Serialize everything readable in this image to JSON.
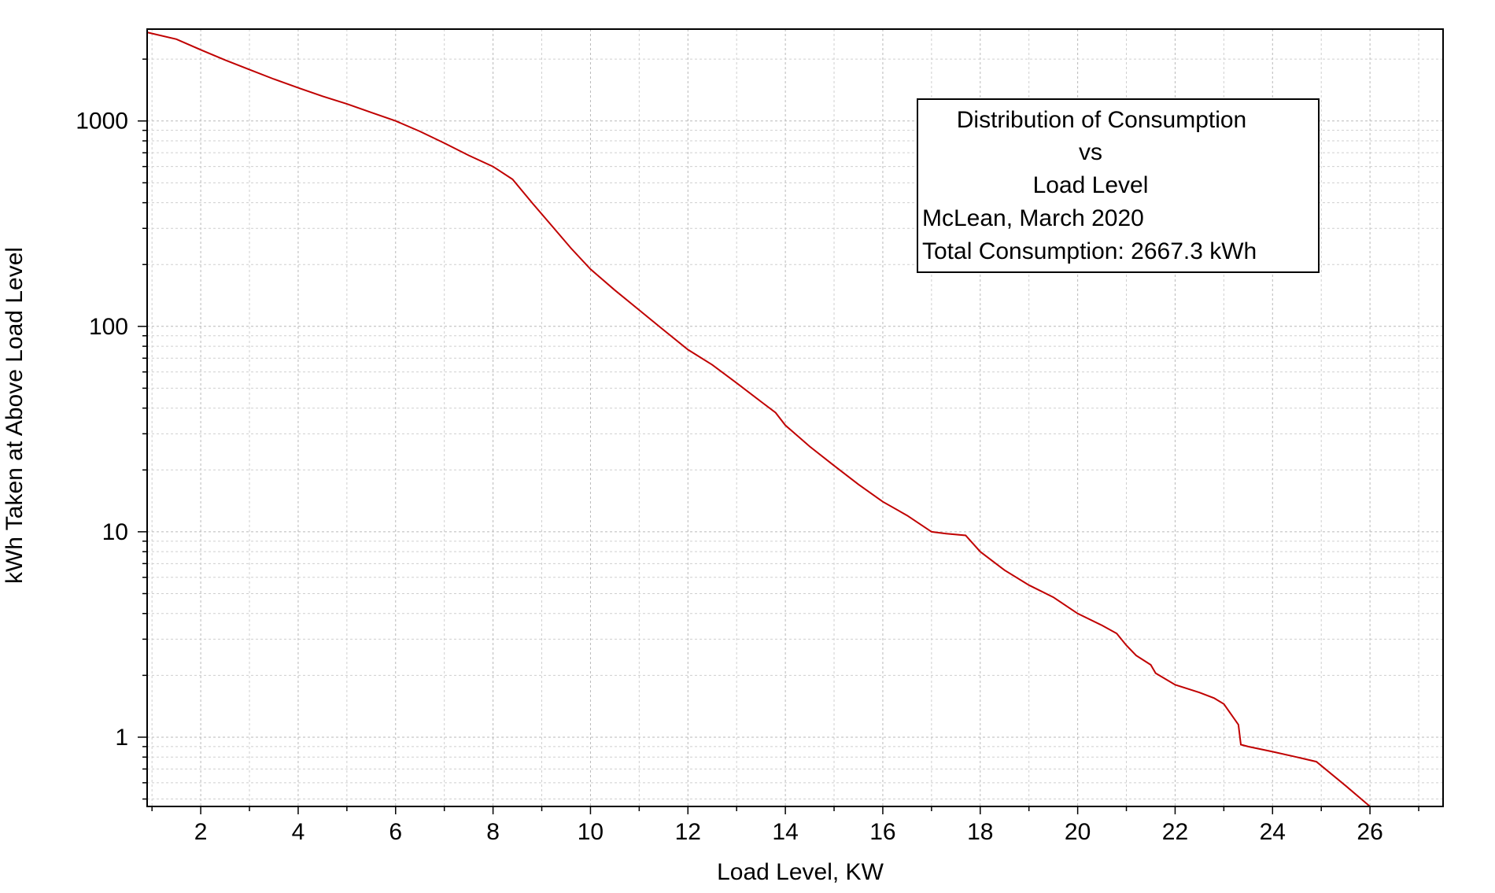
{
  "chart_data": {
    "type": "line",
    "title": "",
    "xlabel": "Load Level, KW",
    "ylabel": "kWh Taken at Above Load Level",
    "xlim": [
      0.9,
      27.5
    ],
    "ylim": [
      0.46,
      2800
    ],
    "yscale": "log",
    "grid": true,
    "x_ticks": [
      "2",
      "4",
      "6",
      "8",
      "10",
      "12",
      "14",
      "16",
      "18",
      "20",
      "22",
      "24",
      "26"
    ],
    "y_ticks": [
      "1",
      "10",
      "100",
      "1000"
    ],
    "line_color": "#c00000",
    "annotation": {
      "line1": "Distribution of Consumption",
      "line2": "vs",
      "line3": "Load Level",
      "line4": "McLean, March 2020",
      "line5": "Total Consumption:  2667.3 kWh",
      "placement": "top-right"
    },
    "series": [
      {
        "x": [
          0.9,
          1.5,
          2.0,
          2.5,
          3.0,
          3.5,
          4.0,
          4.5,
          5.0,
          5.5,
          6.0,
          6.5,
          7.0,
          7.5,
          8.0,
          8.4,
          8.8,
          9.2,
          9.6,
          10.0,
          10.5,
          11.0,
          11.5,
          12.0,
          12.5,
          13.0,
          13.5,
          13.8,
          14.0,
          14.5,
          15.0,
          15.5,
          16.0,
          16.5,
          17.0,
          17.3,
          17.7,
          18.0,
          18.5,
          19.0,
          19.5,
          20.0,
          20.5,
          20.8,
          21.0,
          21.2,
          21.5,
          21.6,
          22.0,
          22.5,
          22.8,
          23.0,
          23.3,
          23.35,
          23.5,
          24.0,
          24.5,
          24.9,
          25.5,
          26.0
        ],
        "y": [
          2700,
          2500,
          2220,
          1980,
          1780,
          1600,
          1450,
          1320,
          1210,
          1100,
          1000,
          890,
          780,
          680,
          600,
          520,
          400,
          310,
          240,
          190,
          150,
          120,
          96,
          77,
          65,
          53,
          43,
          38,
          33,
          26,
          21,
          17,
          14,
          12,
          10,
          9.8,
          9.6,
          8.0,
          6.5,
          5.5,
          4.8,
          4.0,
          3.5,
          3.2,
          2.8,
          2.5,
          2.25,
          2.05,
          1.8,
          1.65,
          1.55,
          1.45,
          1.15,
          0.92,
          0.9,
          0.85,
          0.8,
          0.76,
          0.58,
          0.46
        ]
      }
    ]
  }
}
